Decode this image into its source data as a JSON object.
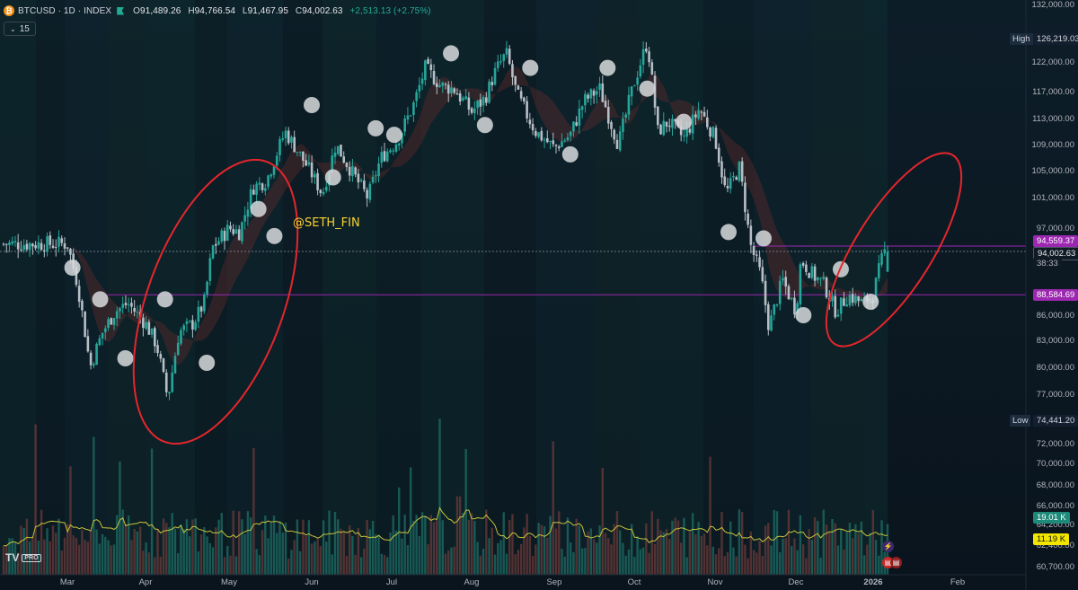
{
  "header": {
    "symbol": "BTCUSD · 1D · INDEX",
    "open_label": "O",
    "open": "91,489.26",
    "high_label": "H",
    "high": "94,766.54",
    "low_label": "L",
    "low": "91,467.95",
    "close_label": "C",
    "close": "94,002.63",
    "change": "+2,513.13 (+2.75%)",
    "interval": "15",
    "coin_icon": "bitcoin-icon",
    "flag_icon": "flag-icon"
  },
  "watermark": "@SETH_FIN",
  "logo": {
    "text": "TV",
    "badge": "PRO"
  },
  "price_tags": {
    "high_label": "High",
    "high_value": "126,219.03",
    "low_label": "Low",
    "low_value": "74,441.20",
    "level_upper": "94,559.37",
    "current_price": "94,002.63",
    "countdown": "38:33",
    "level_lower": "88,584.69",
    "vol_green": "19.01 K",
    "vol_yellow": "11.19 K"
  },
  "colors": {
    "background": "#0b1722",
    "bull": "#26a69a",
    "bear": "#b7bec6",
    "level_line": "#9c27b0",
    "level_tag": "#9c27b0",
    "annotation": "#e5262c",
    "volume_ma": "#c8c13a",
    "dots": "#d8dadd"
  },
  "chart_data": {
    "type": "candlestick",
    "symbol": "BTCUSD",
    "timeframe": "1D",
    "y_axis_ticks": [
      "132,000.00",
      "126,219.03",
      "122,000.00",
      "117,000.00",
      "113,000.00",
      "109,000.00",
      "105,000.00",
      "101,000.00",
      "97,000.00",
      "94,559.37",
      "88,584.69",
      "86,000.00",
      "83,000.00",
      "80,000.00",
      "77,000.00",
      "74,441.20",
      "72,000.00",
      "70,000.00",
      "68,000.00",
      "66,000.00",
      "64,200.00",
      "62,400.00",
      "60,700.00"
    ],
    "x_axis_ticks": [
      "Mar",
      "Apr",
      "May",
      "Jun",
      "Jul",
      "Aug",
      "Sep",
      "Oct",
      "Nov",
      "Dec",
      "2026",
      "Feb"
    ],
    "ylim": [
      60700,
      132000
    ],
    "close_series": [
      {
        "x": "Mar 01",
        "y": 95000
      },
      {
        "x": "Mar 05",
        "y": 90000
      },
      {
        "x": "Mar 10",
        "y": 80000
      },
      {
        "x": "Mar 15",
        "y": 84000
      },
      {
        "x": "Mar 20",
        "y": 86500
      },
      {
        "x": "Mar 25",
        "y": 87500
      },
      {
        "x": "Apr 01",
        "y": 85000
      },
      {
        "x": "Apr 05",
        "y": 82500
      },
      {
        "x": "Apr 09",
        "y": 76500
      },
      {
        "x": "Apr 13",
        "y": 84000
      },
      {
        "x": "Apr 18",
        "y": 85000
      },
      {
        "x": "Apr 22",
        "y": 87500
      },
      {
        "x": "Apr 25",
        "y": 94500
      },
      {
        "x": "May 01",
        "y": 97000
      },
      {
        "x": "May 05",
        "y": 96500
      },
      {
        "x": "May 10",
        "y": 102500
      },
      {
        "x": "May 15",
        "y": 103500
      },
      {
        "x": "May 22",
        "y": 111000
      },
      {
        "x": "May 26",
        "y": 108500
      },
      {
        "x": "Jun 01",
        "y": 104500
      },
      {
        "x": "Jun 05",
        "y": 101500
      },
      {
        "x": "Jun 10",
        "y": 109000
      },
      {
        "x": "Jun 15",
        "y": 105500
      },
      {
        "x": "Jun 22",
        "y": 101000
      },
      {
        "x": "Jun 27",
        "y": 107000
      },
      {
        "x": "Jul 03",
        "y": 109500
      },
      {
        "x": "Jul 10",
        "y": 115500
      },
      {
        "x": "Jul 14",
        "y": 121000
      },
      {
        "x": "Jul 20",
        "y": 118000
      },
      {
        "x": "Jul 25",
        "y": 117500
      },
      {
        "x": "Aug 01",
        "y": 114000
      },
      {
        "x": "Aug 06",
        "y": 116000
      },
      {
        "x": "Aug 10",
        "y": 120500
      },
      {
        "x": "Aug 14",
        "y": 123500
      },
      {
        "x": "Aug 18",
        "y": 116500
      },
      {
        "x": "Aug 25",
        "y": 111000
      },
      {
        "x": "Sep 01",
        "y": 108500
      },
      {
        "x": "Sep 07",
        "y": 110500
      },
      {
        "x": "Sep 12",
        "y": 115500
      },
      {
        "x": "Sep 18",
        "y": 117500
      },
      {
        "x": "Sep 25",
        "y": 109000
      },
      {
        "x": "Oct 01",
        "y": 118500
      },
      {
        "x": "Oct 06",
        "y": 125500
      },
      {
        "x": "Oct 10",
        "y": 111000
      },
      {
        "x": "Oct 14",
        "y": 112500
      },
      {
        "x": "Oct 20",
        "y": 110000
      },
      {
        "x": "Oct 26",
        "y": 114500
      },
      {
        "x": "Nov 01",
        "y": 110000
      },
      {
        "x": "Nov 05",
        "y": 101500
      },
      {
        "x": "Nov 10",
        "y": 105500
      },
      {
        "x": "Nov 14",
        "y": 95000
      },
      {
        "x": "Nov 18",
        "y": 91000
      },
      {
        "x": "Nov 21",
        "y": 84500
      },
      {
        "x": "Nov 26",
        "y": 90500
      },
      {
        "x": "Dec 01",
        "y": 86500
      },
      {
        "x": "Dec 03",
        "y": 93000
      },
      {
        "x": "Dec 08",
        "y": 91000
      },
      {
        "x": "Dec 12",
        "y": 90000
      },
      {
        "x": "Dec 17",
        "y": 86500
      },
      {
        "x": "Dec 22",
        "y": 88500
      },
      {
        "x": "Dec 28",
        "y": 87500
      },
      {
        "x": "Jan 01",
        "y": 88500
      },
      {
        "x": "Jan 03",
        "y": 91500
      },
      {
        "x": "Jan 05",
        "y": 94002.63
      }
    ],
    "horizontal_levels": [
      94559.37,
      88584.69
    ],
    "high": 126219.03,
    "low": 74441.2,
    "volume_labels": [
      "19.01 K",
      "11.19 K"
    ],
    "grid": false
  }
}
